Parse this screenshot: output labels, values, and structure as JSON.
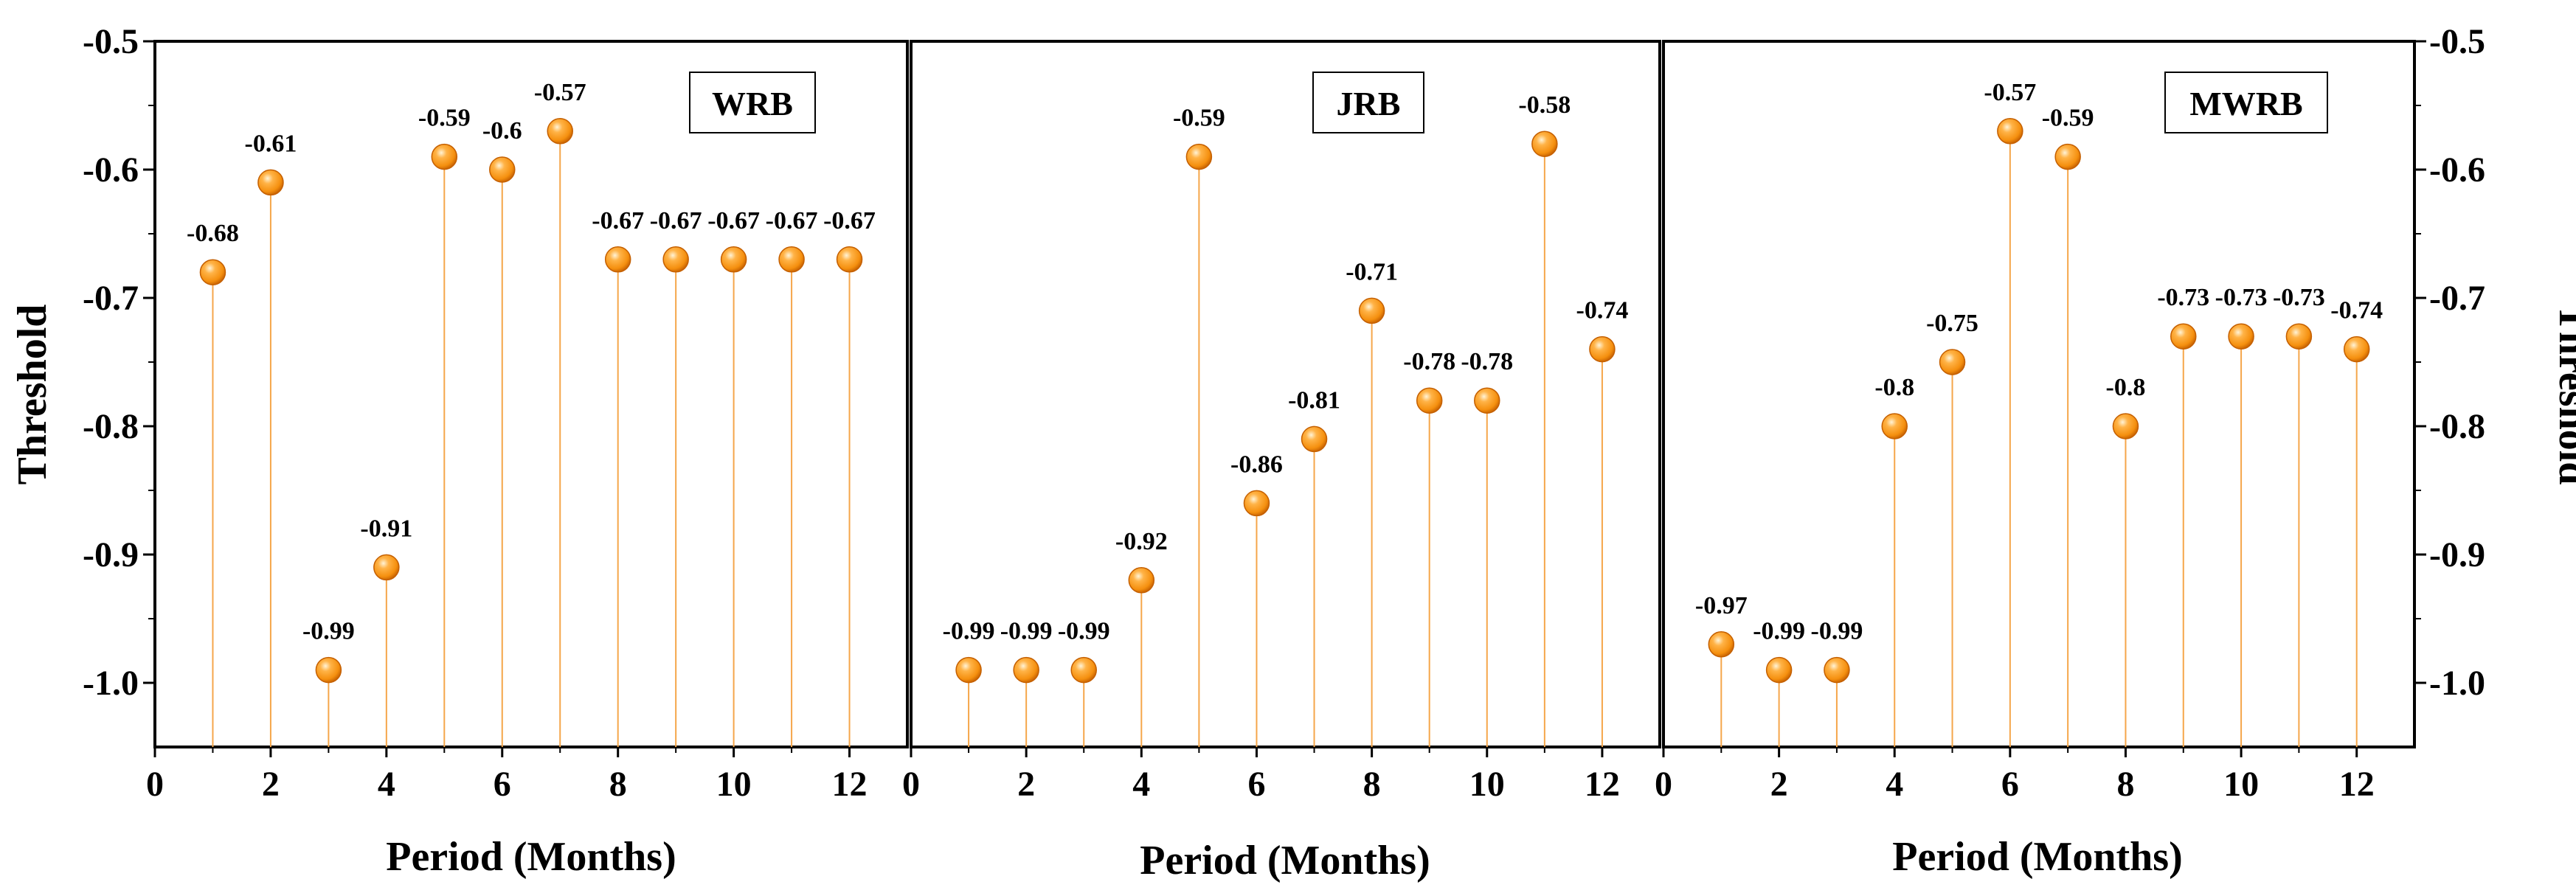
{
  "chart_data": [
    {
      "type": "stem",
      "panel": "WRB",
      "xlabel": "Period (Months)",
      "ylabel": "Threshold",
      "xlim": [
        0,
        13
      ],
      "ylim": [
        -1.05,
        -0.5
      ],
      "x_ticks": [
        "0",
        "2",
        "4",
        "6",
        "8",
        "10",
        "12"
      ],
      "y_ticks": [
        "-0.5",
        "-0.6",
        "-0.7",
        "-0.8",
        "-0.9",
        "-1.0"
      ],
      "x": [
        1,
        2,
        3,
        4,
        5,
        6,
        7,
        8,
        9,
        10,
        11,
        12
      ],
      "values": [
        -0.68,
        -0.61,
        -0.99,
        -0.91,
        -0.59,
        -0.6,
        -0.57,
        -0.67,
        -0.67,
        -0.67,
        -0.67,
        -0.67
      ],
      "labels": [
        "-0.68",
        "-0.61",
        "-0.99",
        "-0.91",
        "-0.59",
        "-0.6",
        "-0.57",
        "-0.67",
        "-0.67",
        "-0.67",
        "-0.67",
        "-0.67"
      ]
    },
    {
      "type": "stem",
      "panel": "JRB",
      "xlabel": "Period (Months)",
      "ylabel": "",
      "xlim": [
        0,
        13
      ],
      "ylim": [
        -1.05,
        -0.5
      ],
      "x_ticks": [
        "0",
        "2",
        "4",
        "6",
        "8",
        "10",
        "12"
      ],
      "y_ticks": [],
      "x": [
        1,
        2,
        3,
        4,
        5,
        6,
        7,
        8,
        9,
        10,
        11,
        12
      ],
      "values": [
        -0.99,
        -0.99,
        -0.99,
        -0.92,
        -0.59,
        -0.86,
        -0.81,
        -0.71,
        -0.78,
        -0.78,
        -0.58,
        -0.74
      ],
      "labels": [
        "-0.99",
        "-0.99",
        "-0.99",
        "-0.92",
        "-0.59",
        "-0.86",
        "-0.81",
        "-0.71",
        "-0.78",
        "-0.78",
        "-0.58",
        "-0.74"
      ]
    },
    {
      "type": "stem",
      "panel": "MWRB",
      "xlabel": "Period (Months)",
      "ylabel": "Threshold",
      "xlim": [
        0,
        13
      ],
      "ylim": [
        -1.05,
        -0.5
      ],
      "x_ticks": [
        "0",
        "2",
        "4",
        "6",
        "8",
        "10",
        "12"
      ],
      "y_ticks": [
        "-0.5",
        "-0.6",
        "-0.7",
        "-0.8",
        "-0.9",
        "-1.0"
      ],
      "x": [
        1,
        2,
        3,
        4,
        5,
        6,
        7,
        8,
        9,
        10,
        11,
        12
      ],
      "values": [
        -0.97,
        -0.99,
        -0.99,
        -0.8,
        -0.75,
        -0.57,
        -0.59,
        -0.8,
        -0.73,
        -0.73,
        -0.73,
        -0.74
      ],
      "labels": [
        "-0.97",
        "-0.99",
        "-0.99",
        "-0.8",
        "-0.75",
        "-0.57",
        "-0.59",
        "-0.8",
        "-0.73",
        "-0.73",
        "-0.73",
        "-0.74"
      ]
    }
  ],
  "colors": {
    "marker": "#f5900f",
    "marker_dark": "#c45f00",
    "marker_highlight": "#fff3d6",
    "stem": "#f5a64a",
    "axis": "#000000"
  }
}
